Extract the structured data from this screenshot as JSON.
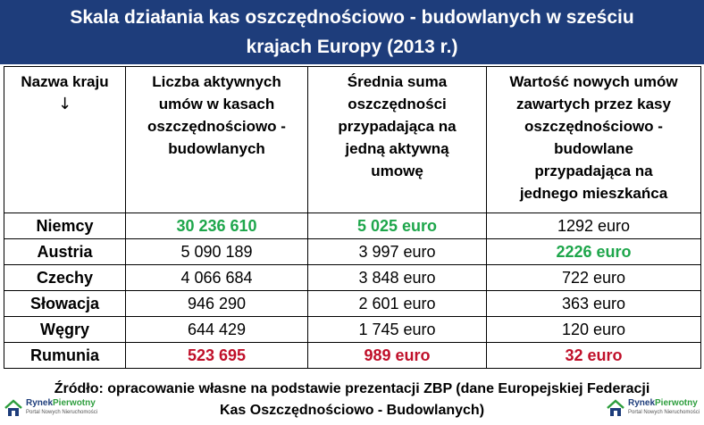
{
  "title": {
    "line1": "Skala działania kas oszczędnościowo - budowlanych w sześciu",
    "line2": "krajach Europy (2013 r.)"
  },
  "table": {
    "headers": [
      {
        "lines": [
          "Nazwa kraju",
          "↓"
        ]
      },
      {
        "lines": [
          "Liczba aktywnych",
          "umów w kasach",
          "oszczędnościowo -",
          "budowlanych"
        ]
      },
      {
        "lines": [
          "Średnia suma",
          "oszczędności",
          "przypadająca na",
          "jedną aktywną",
          "umowę"
        ]
      },
      {
        "lines": [
          "Wartość nowych umów",
          "zawartych przez kasy",
          "oszczędnościowo -",
          "budowlane",
          "przypadająca na",
          "jednego mieszkańca"
        ]
      }
    ],
    "rows": [
      {
        "country": "Niemcy",
        "contracts": "30 236 610",
        "avg_savings": "5 025 euro",
        "new_value": "1292 euro"
      },
      {
        "country": "Austria",
        "contracts": "5 090 189",
        "avg_savings": "3 997 euro",
        "new_value": "2226 euro"
      },
      {
        "country": "Czechy",
        "contracts": "4 066 684",
        "avg_savings": "3 848 euro",
        "new_value": "722 euro"
      },
      {
        "country": "Słowacja",
        "contracts": "946 290",
        "avg_savings": "2 601 euro",
        "new_value": "363 euro"
      },
      {
        "country": "Węgry",
        "contracts": "644 429",
        "avg_savings": "1 745 euro",
        "new_value": "120 euro"
      },
      {
        "country": "Rumunia",
        "contracts": "523 695",
        "avg_savings": "989 euro",
        "new_value": "32 euro"
      }
    ]
  },
  "source": {
    "line1": "Źródło: opracowanie własne na podstawie prezentacji ZBP (dane Europejskiej Federacji",
    "line2": "Kas Oszczędnościowo - Budowlanych)"
  },
  "logo": {
    "name_part1": "Rynek",
    "name_part2": "Pierwotny",
    "tagline": "Portal Nowych Nieruchomości"
  },
  "colors": {
    "header_bg": "#1e3d7b",
    "highlight_max": "#1ea64b",
    "highlight_min": "#c0102a"
  }
}
